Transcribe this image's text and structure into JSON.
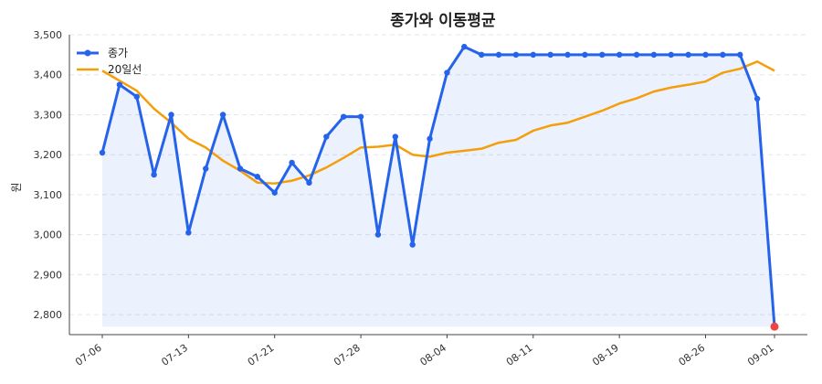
{
  "chart_data": {
    "type": "line",
    "title": "종가와 이동평균",
    "xlabel": "",
    "ylabel": "원",
    "ylim": [
      2750,
      3500
    ],
    "yticks": [
      2800,
      2900,
      3000,
      3100,
      3200,
      3300,
      3400,
      3500
    ],
    "ytick_labels": [
      "2,800",
      "2,900",
      "3,000",
      "3,100",
      "3,200",
      "3,300",
      "3,400",
      "3,500"
    ],
    "xtick_labels": [
      "07-06",
      "07-13",
      "07-21",
      "07-28",
      "08-04",
      "08-11",
      "08-19",
      "08-26",
      "09-01"
    ],
    "xtick_index": [
      0,
      5,
      10,
      15,
      20,
      25,
      30,
      35,
      39
    ],
    "grid": true,
    "legend": "top-left",
    "series": [
      {
        "name": "종가",
        "color": "#2563eb",
        "values": [
          3205,
          3375,
          3345,
          3150,
          3300,
          3005,
          3165,
          3300,
          3165,
          3145,
          3105,
          3180,
          3130,
          3245,
          3295,
          3295,
          3000,
          3245,
          2975,
          3240,
          3405,
          3470,
          3450,
          3450,
          3450,
          3450,
          3450,
          3450,
          3450,
          3450,
          3450,
          3450,
          3450,
          3450,
          3450,
          3450,
          3450,
          3450,
          3340,
          2770
        ]
      },
      {
        "name": "20일선",
        "color": "#f59e0b",
        "values": [
          3410,
          3385,
          3360,
          3315,
          3280,
          3240,
          3218,
          3185,
          3160,
          3130,
          3128,
          3135,
          3148,
          3168,
          3192,
          3218,
          3220,
          3225,
          3200,
          3195,
          3205,
          3210,
          3215,
          3230,
          3237,
          3260,
          3273,
          3280,
          3295,
          3310,
          3328,
          3341,
          3358,
          3368,
          3375,
          3383,
          3405,
          3415,
          3433,
          3410
        ]
      }
    ],
    "last_point_color": "#ef4444"
  }
}
